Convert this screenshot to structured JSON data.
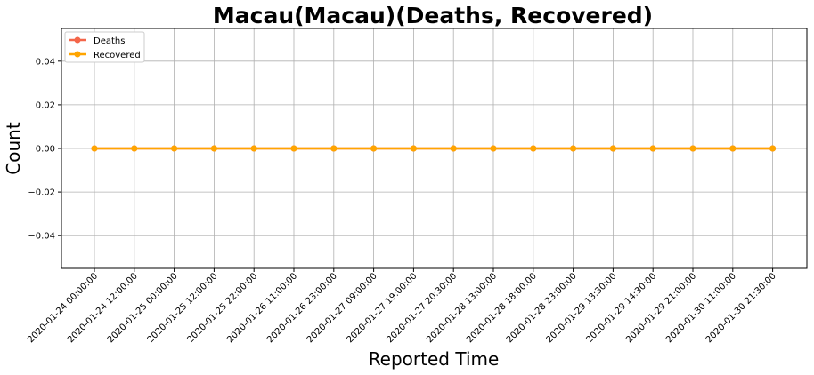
{
  "chart_data": {
    "type": "line",
    "title": "Macau(Macau)(Deaths, Recovered)",
    "xlabel": "Reported Time",
    "ylabel": "Count",
    "x": [
      "2020-01-24 00:00:00",
      "2020-01-24 12:00:00",
      "2020-01-25 00:00:00",
      "2020-01-25 12:00:00",
      "2020-01-25 22:00:00",
      "2020-01-26 11:00:00",
      "2020-01-26 23:00:00",
      "2020-01-27 09:00:00",
      "2020-01-27 19:00:00",
      "2020-01-27 20:30:00",
      "2020-01-28 13:00:00",
      "2020-01-28 18:00:00",
      "2020-01-28 23:00:00",
      "2020-01-29 13:30:00",
      "2020-01-29 14:30:00",
      "2020-01-29 21:00:00",
      "2020-01-30 11:00:00",
      "2020-01-30 21:30:00"
    ],
    "series": [
      {
        "name": "Deaths",
        "color": "#f4664a",
        "values": [
          0,
          0,
          0,
          0,
          0,
          0,
          0,
          0,
          0,
          0,
          0,
          0,
          0,
          0,
          0,
          0,
          0,
          0
        ]
      },
      {
        "name": "Recovered",
        "color": "#ffa500",
        "values": [
          0,
          0,
          0,
          0,
          0,
          0,
          0,
          0,
          0,
          0,
          0,
          0,
          0,
          0,
          0,
          0,
          0,
          0
        ]
      }
    ],
    "ylim": [
      -0.055,
      0.055
    ],
    "yticks": [
      -0.04,
      -0.02,
      0.0,
      0.02,
      0.04
    ],
    "ytick_labels": [
      "−0.04",
      "−0.02",
      "0.00",
      "0.02",
      "0.04"
    ],
    "grid": true,
    "legend_position": "top-left"
  }
}
